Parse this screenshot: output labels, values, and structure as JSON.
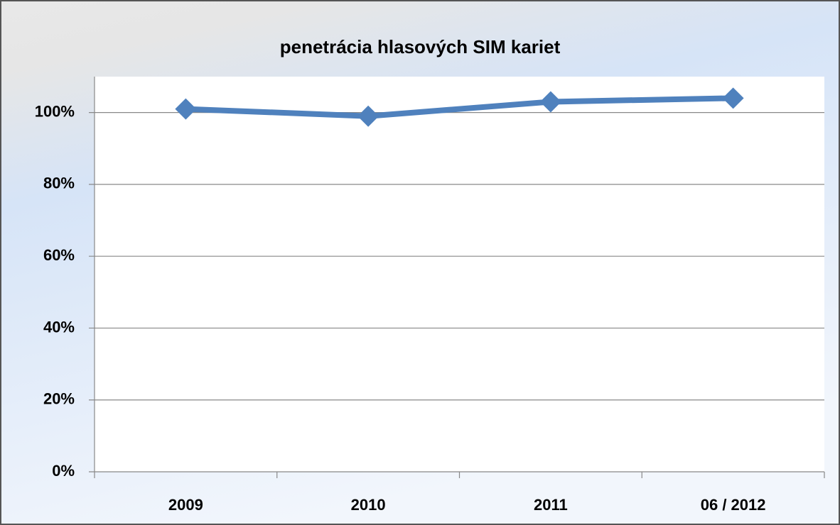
{
  "chart_data": {
    "type": "line",
    "title": "penetrácia hlasových SIM kariet",
    "categories": [
      "2009",
      "2010",
      "2011",
      "06 / 2012"
    ],
    "series": [
      {
        "name": "penetrácia",
        "color": "#4f81bd",
        "values": [
          101,
          99,
          103,
          104
        ]
      }
    ],
    "ylim": [
      0,
      110
    ],
    "yticks": [
      {
        "value": 0,
        "label": "0%"
      },
      {
        "value": 20,
        "label": "20%"
      },
      {
        "value": 40,
        "label": "40%"
      },
      {
        "value": 60,
        "label": "60%"
      },
      {
        "value": 80,
        "label": "80%"
      },
      {
        "value": 100,
        "label": "100%"
      }
    ],
    "grid": true
  }
}
